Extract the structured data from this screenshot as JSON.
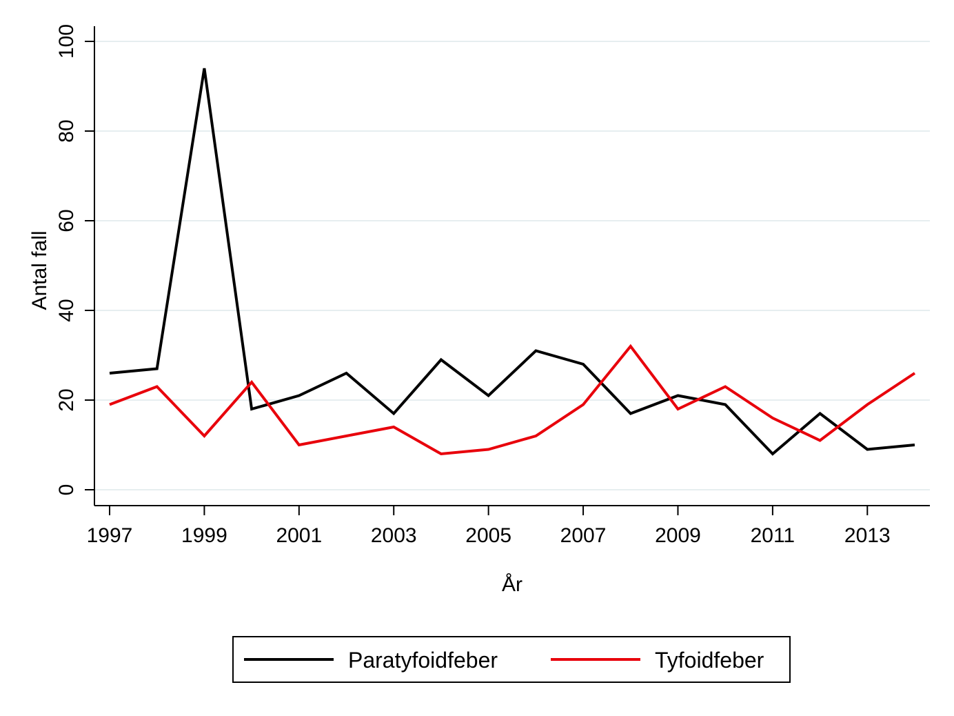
{
  "chart_data": {
    "type": "line",
    "xlabel": "År",
    "ylabel": "Antal fall",
    "x": [
      1997,
      1998,
      1999,
      2000,
      2001,
      2002,
      2003,
      2004,
      2005,
      2006,
      2007,
      2008,
      2009,
      2010,
      2011,
      2012,
      2013,
      2014
    ],
    "xticks": [
      1997,
      1999,
      2001,
      2003,
      2005,
      2007,
      2009,
      2011,
      2013
    ],
    "yticks": [
      0,
      20,
      40,
      60,
      80,
      100
    ],
    "xlim": [
      1997,
      2014
    ],
    "ylim": [
      0,
      100
    ],
    "grid": "horizontal",
    "legend_position": "bottom",
    "series": [
      {
        "name": "Paratyfoidfeber",
        "color": "#000000",
        "values": [
          26,
          27,
          94,
          18,
          21,
          26,
          17,
          29,
          21,
          31,
          28,
          17,
          21,
          19,
          8,
          17,
          9,
          10
        ]
      },
      {
        "name": "Tyfoidfeber",
        "color": "#e8000b",
        "values": [
          19,
          23,
          12,
          24,
          10,
          12,
          14,
          8,
          9,
          12,
          19,
          32,
          18,
          23,
          16,
          11,
          19,
          26
        ]
      }
    ]
  }
}
